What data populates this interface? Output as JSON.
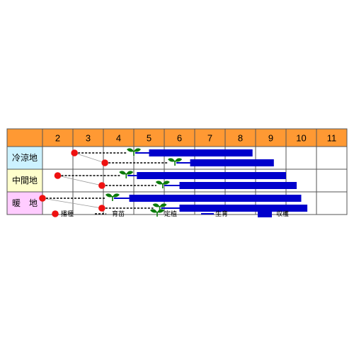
{
  "chart_data": {
    "type": "gantt",
    "months": [
      "2",
      "3",
      "4",
      "5",
      "6",
      "7",
      "8",
      "9",
      "10",
      "11"
    ],
    "colors": {
      "header": "#ff9933",
      "sow": "#ee1111",
      "seedling_line": "#000000",
      "plant": "#0a7a0a",
      "growth": "#0000cc",
      "harvest": "#0000cc"
    },
    "regions": [
      {
        "name": "冷涼地",
        "bg": "#ccf2ff",
        "rows": [
          {
            "sow": 3.05,
            "plant": 5.0,
            "growth_end": 5.5,
            "harvest": [
              5.5,
              8.9
            ]
          },
          {
            "sow": 4.05,
            "plant": 6.35,
            "growth_end": 6.85,
            "harvest": [
              6.85,
              9.6
            ]
          }
        ]
      },
      {
        "name": "中間地",
        "bg": "#ffffcc",
        "rows": [
          {
            "sow": 2.5,
            "plant": 4.75,
            "growth_end": 5.1,
            "harvest": [
              5.1,
              10.0
            ]
          },
          {
            "sow": 3.95,
            "plant": 5.95,
            "growth_end": 6.5,
            "harvest": [
              6.5,
              10.35
            ]
          }
        ]
      },
      {
        "name": "暖　地",
        "bg": "#ffccff",
        "rows": [
          {
            "sow": 2.0,
            "plant": 4.3,
            "growth_end": 4.85,
            "harvest": [
              4.85,
              10.5
            ]
          },
          {
            "sow": 3.95,
            "plant": 5.85,
            "growth_end": 6.5,
            "harvest": [
              6.5,
              10.7
            ]
          }
        ]
      }
    ],
    "legend": [
      {
        "key": "sow",
        "label": "播種"
      },
      {
        "key": "seedling",
        "label": "育苗"
      },
      {
        "key": "plant",
        "label": "定植"
      },
      {
        "key": "growth",
        "label": "生育"
      },
      {
        "key": "harvest",
        "label": "収穫"
      }
    ]
  }
}
